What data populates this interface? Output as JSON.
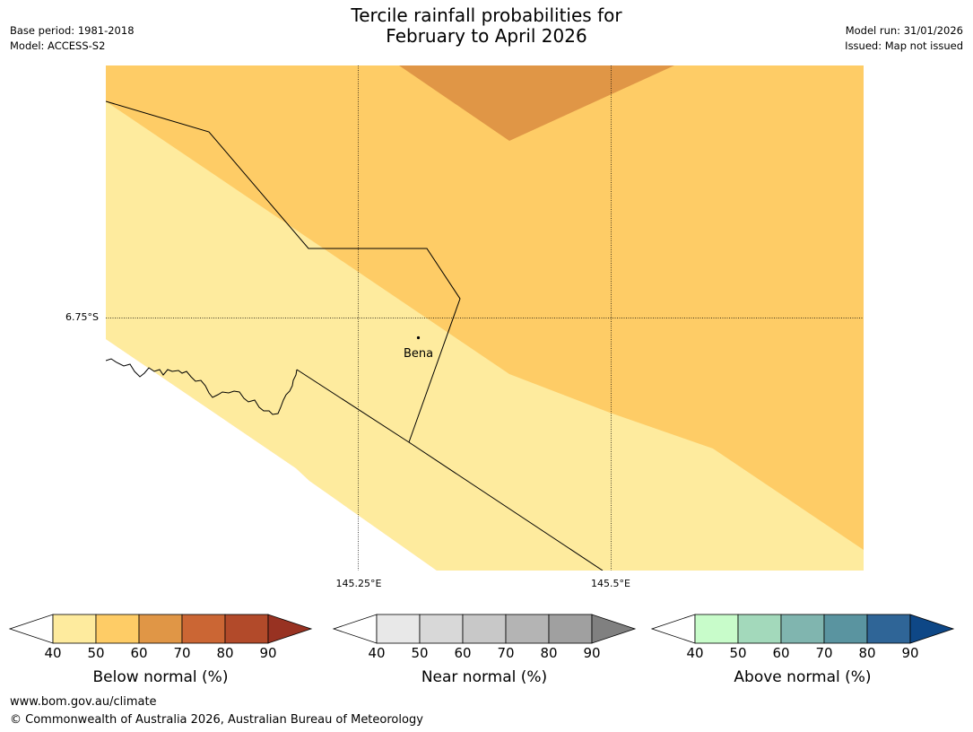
{
  "header": {
    "title_line1": "Tercile rainfall probabilities for",
    "title_line2": "February to April 2026",
    "base_period": "Base period: 1981-2018",
    "model": "Model: ACCESS-S2",
    "model_run": "Model run: 31/01/2026",
    "issued": "Issued: Map not issued"
  },
  "map": {
    "latitude_label": "6.75°S",
    "longitude_labels": [
      "145.25°E",
      "145.5°E"
    ],
    "place": "Bena",
    "zones": [
      {
        "category": "below_normal",
        "range": "40-50",
        "color": "#feeb9e"
      },
      {
        "category": "below_normal",
        "range": "50-60",
        "color": "#fecc66"
      },
      {
        "category": "below_normal",
        "range": "60-70",
        "color": "#e09646"
      }
    ]
  },
  "legends": [
    {
      "title": "Below normal (%)",
      "ticks": [
        "40",
        "50",
        "60",
        "70",
        "80",
        "90"
      ],
      "colors": [
        "#feeb9e",
        "#fecc66",
        "#e09646",
        "#cb6634",
        "#b24a2a",
        "#983222"
      ]
    },
    {
      "title": "Near normal (%)",
      "ticks": [
        "40",
        "50",
        "60",
        "70",
        "80",
        "90"
      ],
      "colors": [
        "#e8e8e8",
        "#d8d8d8",
        "#c8c8c8",
        "#b4b4b4",
        "#a0a0a0",
        "#808080"
      ]
    },
    {
      "title": "Above normal (%)",
      "ticks": [
        "40",
        "50",
        "60",
        "70",
        "80",
        "90"
      ],
      "colors": [
        "#c8fcca",
        "#a3d9bb",
        "#80b5af",
        "#5a94a0",
        "#2f6597",
        "#0e4786"
      ]
    }
  ],
  "footer": {
    "url": "www.bom.gov.au/climate",
    "copyright": "© Commonwealth of Australia 2026, Australian Bureau of Meteorology"
  }
}
